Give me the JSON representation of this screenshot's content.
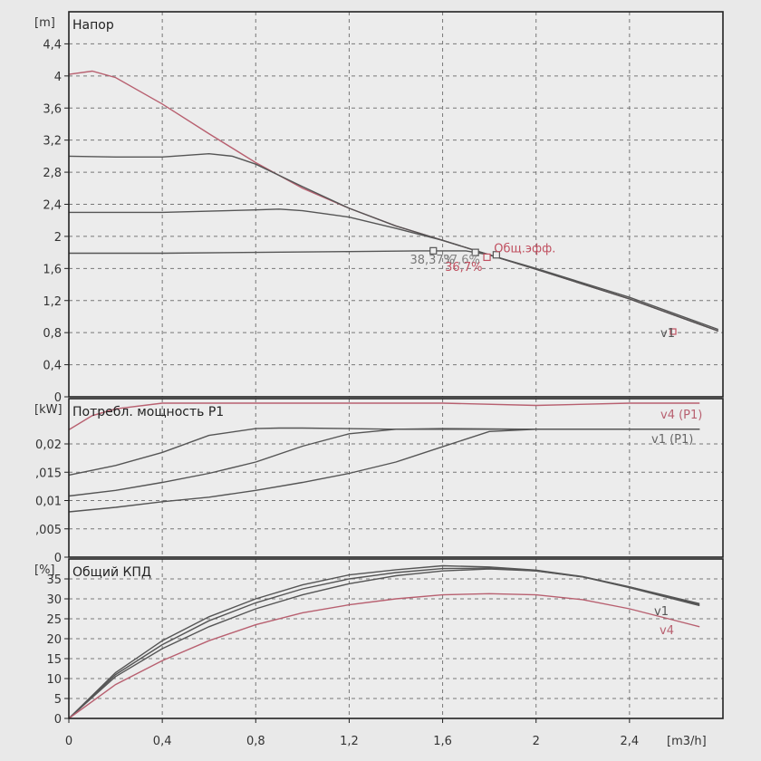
{
  "chart_data": [
    {
      "type": "line",
      "title": "Напор",
      "ylabel": "[m]",
      "xlabel": "[m3/h]",
      "xlim": [
        0,
        2.8
      ],
      "ylim": [
        0,
        4.8
      ],
      "x_ticks": [
        "0",
        "0,4",
        "0,8",
        "1,2",
        "1,6",
        "2",
        "2,4"
      ],
      "y_ticks": [
        "0",
        "0,4",
        "0,8",
        "1,2",
        "1,6",
        "2",
        "2,4",
        "2,8",
        "3,2",
        "3,6",
        "4",
        "4,4"
      ],
      "grid": true,
      "series": [
        {
          "name": "v4",
          "color": "#b86070",
          "x": [
            0,
            0.1,
            0.2,
            0.4,
            0.6,
            0.8,
            1.0,
            1.2,
            1.4,
            1.6,
            1.8,
            2.0,
            2.4,
            2.78
          ],
          "y": [
            4.02,
            4.06,
            3.98,
            3.65,
            3.28,
            2.92,
            2.6,
            2.35,
            2.13,
            1.95,
            1.77,
            1.59,
            1.22,
            0.82
          ]
        },
        {
          "name": "",
          "color": "#555555",
          "x": [
            0,
            0.2,
            0.4,
            0.6,
            0.7,
            0.8,
            1.0,
            1.2,
            1.4,
            1.6,
            1.8,
            2.0,
            2.4,
            2.78
          ],
          "y": [
            3.0,
            2.99,
            2.99,
            3.03,
            3.0,
            2.9,
            2.62,
            2.35,
            2.13,
            1.95,
            1.77,
            1.59,
            1.22,
            0.82
          ]
        },
        {
          "name": "",
          "color": "#555555",
          "x": [
            0,
            0.4,
            0.8,
            0.9,
            1.0,
            1.1,
            1.2,
            1.4,
            1.6,
            1.8,
            2.0,
            2.4,
            2.78
          ],
          "y": [
            2.3,
            2.3,
            2.33,
            2.34,
            2.32,
            2.28,
            2.24,
            2.1,
            1.95,
            1.77,
            1.59,
            1.22,
            0.82
          ]
        },
        {
          "name": "v1",
          "color": "#555555",
          "x": [
            0,
            0.4,
            0.8,
            1.2,
            1.5,
            1.7,
            1.8,
            2.0,
            2.4,
            2.78
          ],
          "y": [
            1.79,
            1.79,
            1.8,
            1.81,
            1.82,
            1.82,
            1.77,
            1.6,
            1.24,
            0.84
          ]
        }
      ],
      "annotations": [
        {
          "text": "Общ.эфф.",
          "x": 1.82,
          "y": 1.8,
          "color": "#c05060"
        },
        {
          "text": "38,37%",
          "x": 1.46,
          "y": 1.66,
          "color": "#777777"
        },
        {
          "text": "37,6%",
          "x": 1.6,
          "y": 1.66,
          "color": "#888888"
        },
        {
          "text": "36,7%",
          "x": 1.61,
          "y": 1.57,
          "color": "#c05060"
        }
      ],
      "series_end_label": "v1"
    },
    {
      "type": "line",
      "title": "Потребл. мощность P1",
      "ylabel": "[kW]",
      "ylim": [
        0,
        0.028
      ],
      "y_ticks": [
        "0",
        ",005",
        "0,01",
        ",015",
        "0,02"
      ],
      "grid": true,
      "series": [
        {
          "name": "v4 (P1)",
          "color": "#b86070",
          "x": [
            0,
            0.1,
            0.2,
            0.4,
            1.0,
            1.6,
            2.0,
            2.4,
            2.7
          ],
          "y": [
            0.0225,
            0.025,
            0.0262,
            0.0272,
            0.0272,
            0.0272,
            0.0268,
            0.0272,
            0.0272
          ]
        },
        {
          "name": "",
          "color": "#555555",
          "x": [
            0,
            0.2,
            0.4,
            0.6,
            0.8,
            0.9,
            1.0,
            1.4,
            2.0,
            2.4,
            2.7
          ],
          "y": [
            0.0145,
            0.0162,
            0.0185,
            0.0215,
            0.0227,
            0.0228,
            0.0228,
            0.0226,
            0.0226,
            0.0226,
            0.0226
          ]
        },
        {
          "name": "",
          "color": "#555555",
          "x": [
            0,
            0.2,
            0.4,
            0.6,
            0.8,
            1.0,
            1.2,
            1.4,
            1.6,
            2.0,
            2.4,
            2.7
          ],
          "y": [
            0.0108,
            0.0118,
            0.0132,
            0.0148,
            0.0168,
            0.0196,
            0.0218,
            0.0226,
            0.0227,
            0.0226,
            0.0226,
            0.0226
          ]
        },
        {
          "name": "v1 (P1)",
          "color": "#555555",
          "x": [
            0,
            0.2,
            0.4,
            0.6,
            0.8,
            1.0,
            1.2,
            1.4,
            1.6,
            1.8,
            2.0,
            2.4,
            2.7
          ],
          "y": [
            0.008,
            0.0088,
            0.0098,
            0.0106,
            0.0118,
            0.0132,
            0.0148,
            0.0168,
            0.0195,
            0.0222,
            0.0226,
            0.0226,
            0.0226
          ]
        }
      ]
    },
    {
      "type": "line",
      "title": "Общий КПД",
      "ylabel": "[%]",
      "ylim": [
        0,
        40
      ],
      "y_ticks": [
        "0",
        "5",
        "10",
        "15",
        "20",
        "25",
        "30",
        "35"
      ],
      "grid": true,
      "series": [
        {
          "name": "",
          "color": "#555555",
          "x": [
            0,
            0.2,
            0.4,
            0.6,
            0.8,
            1.0,
            1.2,
            1.4,
            1.6,
            1.8,
            2.0,
            2.2,
            2.4,
            2.7
          ],
          "y": [
            0,
            11.5,
            19.5,
            25.5,
            30.0,
            33.5,
            36.0,
            37.3,
            38.3,
            38.0,
            37.2,
            35.6,
            33.0,
            28.5
          ]
        },
        {
          "name": "",
          "color": "#555555",
          "x": [
            0,
            0.2,
            0.4,
            0.6,
            0.8,
            1.0,
            1.2,
            1.4,
            1.6,
            1.8,
            2.0,
            2.2,
            2.4,
            2.7
          ],
          "y": [
            0,
            11.0,
            18.5,
            24.5,
            29.0,
            32.5,
            35.0,
            36.6,
            37.6,
            37.7,
            37.0,
            35.5,
            32.8,
            28.3
          ]
        },
        {
          "name": "v1",
          "color": "#555555",
          "x": [
            0,
            0.2,
            0.4,
            0.6,
            0.8,
            1.0,
            1.2,
            1.4,
            1.6,
            1.8,
            2.0,
            2.2,
            2.4,
            2.7
          ],
          "y": [
            0,
            10.5,
            17.5,
            23.0,
            27.5,
            31.0,
            33.8,
            35.8,
            37.0,
            37.5,
            37.0,
            35.5,
            33.0,
            28.8
          ]
        },
        {
          "name": "v4",
          "color": "#b86070",
          "x": [
            0,
            0.2,
            0.4,
            0.6,
            0.8,
            1.0,
            1.2,
            1.4,
            1.6,
            1.8,
            2.0,
            2.2,
            2.4,
            2.7
          ],
          "y": [
            0,
            8.5,
            14.5,
            19.5,
            23.5,
            26.5,
            28.5,
            30.0,
            31.0,
            31.3,
            31.0,
            29.8,
            27.5,
            23.0
          ]
        }
      ]
    }
  ]
}
